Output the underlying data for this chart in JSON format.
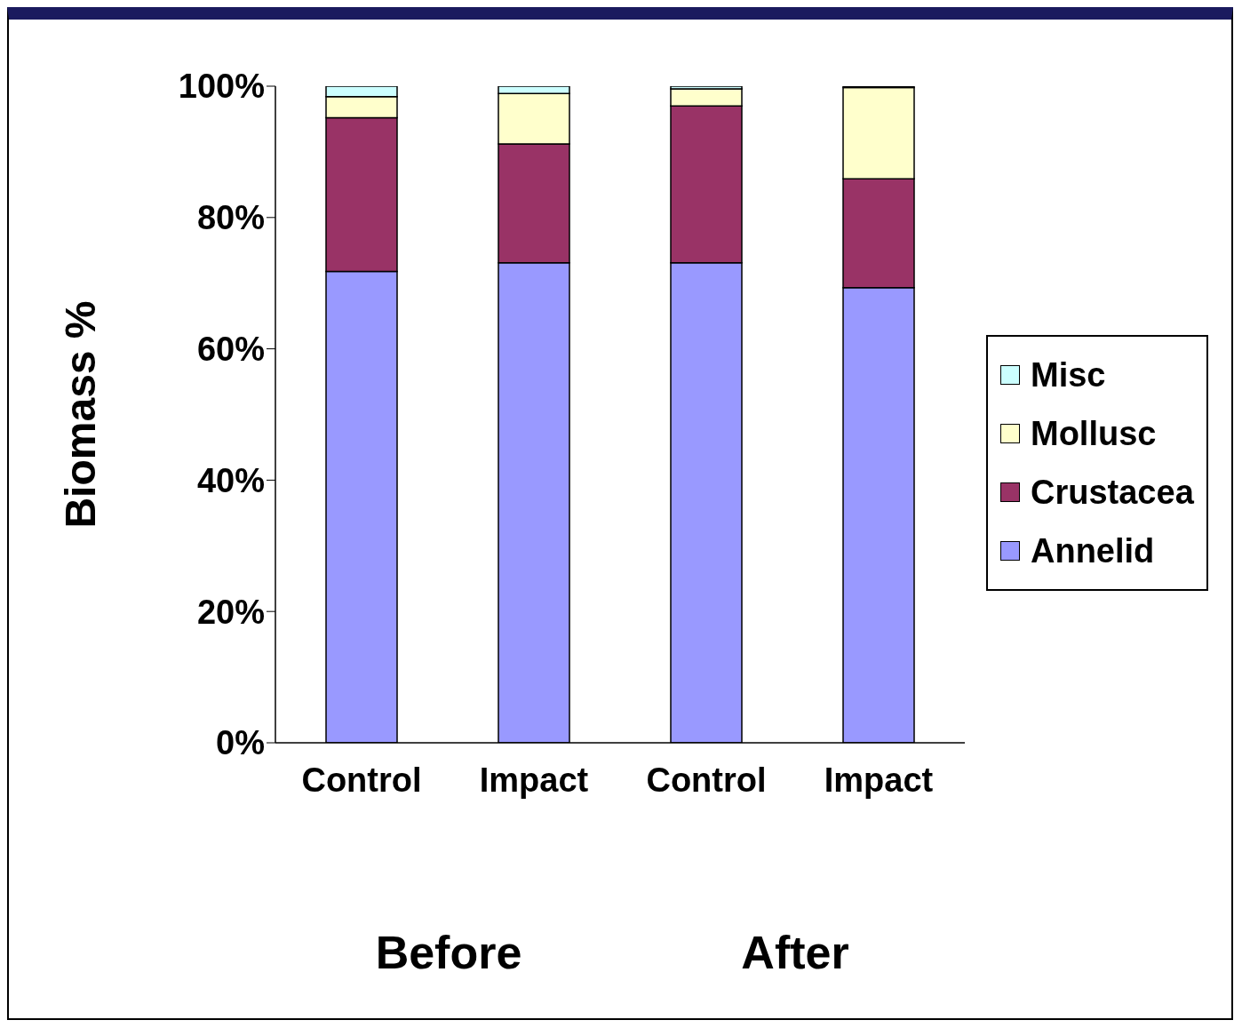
{
  "chart_data": {
    "type": "bar",
    "stacked": true,
    "ylabel": "Biomass %",
    "categories": [
      "Control",
      "Impact",
      "Control",
      "Impact"
    ],
    "series": [
      {
        "name": "Annelid",
        "color": "#9999ff",
        "values": [
          71.8,
          73.1,
          73.1,
          69.3
        ]
      },
      {
        "name": "Crustacea",
        "color": "#993366",
        "values": [
          23.4,
          18.1,
          23.9,
          16.6
        ]
      },
      {
        "name": "Mollusc",
        "color": "#ffffcc",
        "values": [
          3.2,
          7.7,
          2.6,
          13.9
        ]
      },
      {
        "name": "Misc",
        "color": "#ccffff",
        "values": [
          1.6,
          1.1,
          0.4,
          0.2
        ]
      }
    ],
    "ylim": [
      0,
      100
    ],
    "yticks": [
      {
        "value": 0,
        "label": "0%"
      },
      {
        "value": 20,
        "label": "20%"
      },
      {
        "value": 40,
        "label": "40%"
      },
      {
        "value": 60,
        "label": "60%"
      },
      {
        "value": 80,
        "label": "80%"
      },
      {
        "value": 100,
        "label": "100%"
      }
    ],
    "grid": false,
    "legend": "right",
    "annotations": [
      "Before",
      "After"
    ]
  }
}
